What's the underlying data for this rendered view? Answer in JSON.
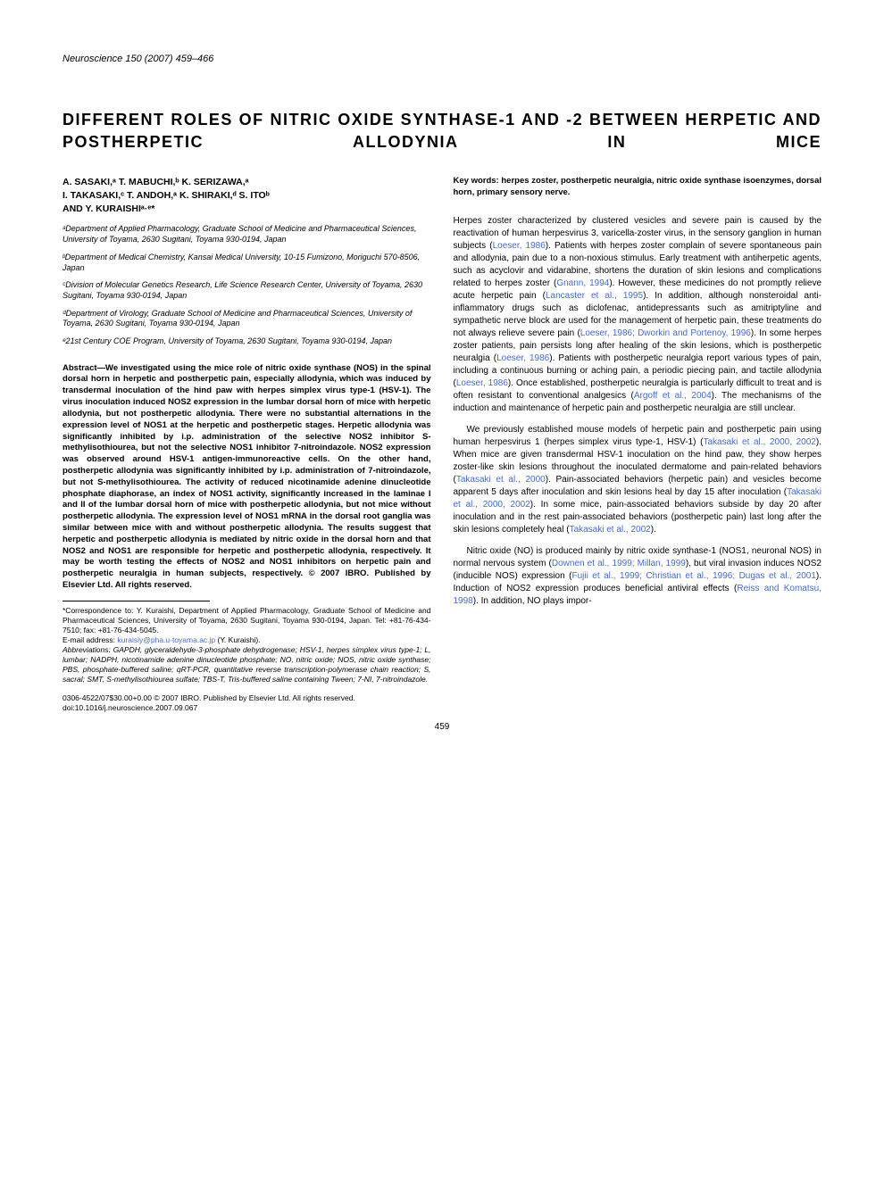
{
  "journal": {
    "name": "Neuroscience",
    "citation": "150 (2007) 459–466"
  },
  "title": "DIFFERENT ROLES OF NITRIC OXIDE SYNTHASE-1 AND -2 BETWEEN HERPETIC AND POSTHERPETIC ALLODYNIA IN MICE",
  "authors_line1": "A. SASAKI,ᵃ T. MABUCHI,ᵇ K. SERIZAWA,ᵃ",
  "authors_line2": "I. TAKASAKI,ᶜ T. ANDOH,ᵃ K. SHIRAKI,ᵈ S. ITOᵇ",
  "authors_line3": "AND Y. KURAISHIᵃ·ᵉ*",
  "affiliations": {
    "a": "ᵃDepartment of Applied Pharmacology, Graduate School of Medicine and Pharmaceutical Sciences, University of Toyama, 2630 Sugitani, Toyama 930-0194, Japan",
    "b": "ᵇDepartment of Medical Chemistry, Kansai Medical University, 10-15 Fumizono, Moriguchi 570-8506, Japan",
    "c": "ᶜDivision of Molecular Genetics Research, Life Science Research Center, University of Toyama, 2630 Sugitani, Toyama 930-0194, Japan",
    "d": "ᵈDepartment of Virology, Graduate School of Medicine and Pharmaceutical Sciences, University of Toyama, 2630 Sugitani, Toyama 930-0194, Japan",
    "e": "ᵉ21st Century COE Program, University of Toyama, 2630 Sugitani, Toyama 930-0194, Japan"
  },
  "abstract": "Abstract—We investigated using the mice role of nitric oxide synthase (NOS) in the spinal dorsal horn in herpetic and postherpetic pain, especially allodynia, which was induced by transdermal inoculation of the hind paw with herpes simplex virus type-1 (HSV-1). The virus inoculation induced NOS2 expression in the lumbar dorsal horn of mice with herpetic allodynia, but not postherpetic allodynia. There were no substantial alternations in the expression level of NOS1 at the herpetic and postherpetic stages. Herpetic allodynia was significantly inhibited by i.p. administration of the selective NOS2 inhibitor S-methylisothiourea, but not the selective NOS1 inhibitor 7-nitroindazole. NOS2 expression was observed around HSV-1 antigen-immunoreactive cells. On the other hand, postherpetic allodynia was significantly inhibited by i.p. administration of 7-nitroindazole, but not S-methylisothiourea. The activity of reduced nicotinamide adenine dinucleotide phosphate diaphorase, an index of NOS1 activity, significantly increased in the laminae I and II of the lumbar dorsal horn of mice with postherpetic allodynia, but not mice without postherpetic allodynia. The expression level of NOS1 mRNA in the dorsal root ganglia was similar between mice with and without postherpetic allodynia. The results suggest that herpetic and postherpetic allodynia is mediated by nitric oxide in the dorsal horn and that NOS2 and NOS1 are responsible for herpetic and postherpetic allodynia, respectively. It may be worth testing the effects of NOS2 and NOS1 inhibitors on herpetic pain and postherpetic neuralgia in human subjects, respectively. © 2007 IBRO. Published by Elsevier Ltd. All rights reserved.",
  "keywords": "Key words: herpes zoster, postherpetic neuralgia, nitric oxide synthase isoenzymes, dorsal horn, primary sensory nerve.",
  "body": {
    "p1_pre": "Herpes zoster characterized by clustered vesicles and severe pain is caused by the reactivation of human herpesvirus 3, varicella-zoster virus, in the sensory ganglion in human subjects (",
    "p1_ref1": "Loeser, 1986",
    "p1_mid1": "). Patients with herpes zoster complain of severe spontaneous pain and allodynia, pain due to a non-noxious stimulus. Early treatment with antiherpetic agents, such as acyclovir and vidarabine, shortens the duration of skin lesions and complications related to herpes zoster (",
    "p1_ref2": "Gnann, 1994",
    "p1_mid2": "). However, these medicines do not promptly relieve acute herpetic pain (",
    "p1_ref3": "Lancaster et al., 1995",
    "p1_mid3": "). In addition, although nonsteroidal anti-inflammatory drugs such as diclofenac, antidepressants such as amitriptyline and sympathetic nerve block are used for the management of herpetic pain, these treatments do not always relieve severe pain (",
    "p1_ref4": "Loeser, 1986; Dworkin and Portenoy, 1996",
    "p1_mid4": "). In some herpes zoster patients, pain persists long after healing of the skin lesions, which is postherpetic neuralgia (",
    "p1_ref5": "Loeser, 1986",
    "p1_mid5": "). Patients with postherpetic neuralgia report various types of pain, including a continuous burning or aching pain, a periodic piecing pain, and tactile allodynia (",
    "p1_ref6": "Loeser, 1986",
    "p1_mid6": "). Once established, postherpetic neuralgia is particularly difficult to treat and is often resistant to conventional analgesics (",
    "p1_ref7": "Argoff et al., 2004",
    "p1_end": "). The mechanisms of the induction and maintenance of herpetic pain and postherpetic neuralgia are still unclear.",
    "p2_pre": "We previously established mouse models of herpetic pain and postherpetic pain using human herpesvirus 1 (herpes simplex virus type-1, HSV-1) (",
    "p2_ref1": "Takasaki et al., 2000, 2002",
    "p2_mid1": "). When mice are given transdermal HSV-1 inoculation on the hind paw, they show herpes zoster-like skin lesions throughout the inoculated dermatome and pain-related behaviors (",
    "p2_ref2": "Takasaki et al., 2000",
    "p2_mid2": "). Pain-associated behaviors (herpetic pain) and vesicles become apparent 5 days after inoculation and skin lesions heal by day 15 after inoculation (",
    "p2_ref3": "Takasaki et al., 2000, 2002",
    "p2_mid3": "). In some mice, pain-associated behaviors subside by day 20 after inoculation and in the rest pain-associated behaviors (postherpetic pain) last long after the skin lesions completely heal (",
    "p2_ref4": "Takasaki et al., 2002",
    "p2_end": ").",
    "p3_pre": "Nitric oxide (NO) is produced mainly by nitric oxide synthase-1 (NOS1, neuronal NOS) in normal nervous system (",
    "p3_ref1": "Downen et al., 1999; Millan, 1999",
    "p3_mid1": "), but viral invasion induces NOS2 (inducible NOS) expression (",
    "p3_ref2": "Fujii et al., 1999; Christian et al., 1996; Dugas et al., 2001",
    "p3_mid2": "). Induction of NOS2 expression produces beneficial antiviral effects (",
    "p3_ref3": "Reiss and Komatsu, 1998",
    "p3_end": "). In addition, NO plays impor-"
  },
  "footnotes": {
    "correspondence": "*Correspondence to: Y. Kuraishi, Department of Applied Pharmacology, Graduate School of Medicine and Pharmaceutical Sciences, University of Toyama, 2630 Sugitani, Toyama 930-0194, Japan. Tel: +81-76-434-7510; fax: +81-76-434-5045.",
    "email_label": "E-mail address: ",
    "email": "kuraisiy@pha.u-toyama.ac.jp",
    "email_suffix": " (Y. Kuraishi).",
    "abbreviations": "Abbreviations: GAPDH, glyceraldehyde-3-phosphate dehydrogenase; HSV-1, herpes simplex virus type-1; L, lumbar; NADPH, nicotinamide adenine dinucleotide phosphate; NO, nitric oxide; NOS, nitric oxide synthase; PBS, phosphate-buffered saline; qRT-PCR, quantitative reverse transcription-polymerase chain reaction; S, sacral; SMT, S-methylisothiourea sulfate; TBS-T, Tris-buffered saline containing Tween; 7-NI, 7-nitroindazole."
  },
  "copyright": {
    "line1": "0306-4522/07$30.00+0.00 © 2007 IBRO. Published by Elsevier Ltd. All rights reserved.",
    "line2": "doi:10.1016/j.neuroscience.2007.09.067"
  },
  "page_number": "459"
}
